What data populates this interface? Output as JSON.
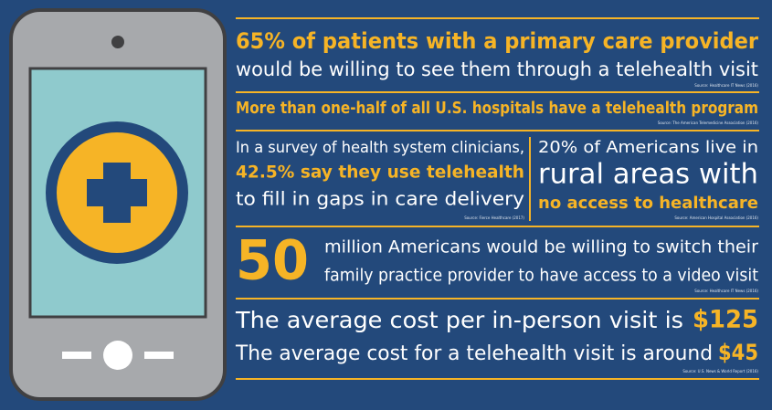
{
  "phone": {
    "label": null
  },
  "facts": [
    {
      "headline": "65% of patients with a primary care provider",
      "text": "would be willing to see them through a telehealth visit",
      "source": "Source: Healthcare IT News (2016)"
    },
    {
      "headline": "More than one-half of all U.S. hospitals have a telehealth program",
      "source": "Source: The American Telemedicine Association (2016)"
    },
    {
      "line1": "In a survey of health system clinicians,",
      "highlight": "42.5% say they use telehealth",
      "line3": "to fill in gaps in care delivery",
      "source": "Source: Fierce Healthcare (2017)"
    },
    {
      "line1": "20% of Americans live in",
      "line2": "rural areas with",
      "highlight": "no access to healthcare",
      "source": "Source: American Hospital Association (2016)"
    },
    {
      "number": "50",
      "line1": "million Americans would be willing to switch their",
      "line2": "family practice provider to have access to a video visit",
      "source": "Source: Healthcare IT News (2016)"
    },
    {
      "line1": "The average cost per in-person visit is",
      "amount1": "$125",
      "line2": "The average cost for a telehealth visit is around",
      "amount2": "$45",
      "source": "Source: U.S. News & World Report (2016)"
    }
  ]
}
